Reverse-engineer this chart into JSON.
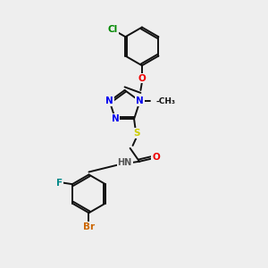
{
  "bg_color": "#eeeeee",
  "bond_color": "#111111",
  "bond_width": 1.4,
  "figsize": [
    3.0,
    3.0
  ],
  "dpi": 100,
  "atoms": {
    "Cl": {
      "color": "#008800",
      "fontsize": 7.5
    },
    "O": {
      "color": "#ee0000",
      "fontsize": 7.5
    },
    "N": {
      "color": "#0000ee",
      "fontsize": 7.5
    },
    "S": {
      "color": "#cccc00",
      "fontsize": 7.5
    },
    "F": {
      "color": "#008888",
      "fontsize": 7.5
    },
    "Br": {
      "color": "#cc6600",
      "fontsize": 7.5
    },
    "H": {
      "color": "#555555",
      "fontsize": 7
    },
    "C": {
      "color": "#111111",
      "fontsize": 7
    }
  },
  "layout": {
    "xlim": [
      0,
      10
    ],
    "ylim": [
      0,
      10
    ]
  }
}
